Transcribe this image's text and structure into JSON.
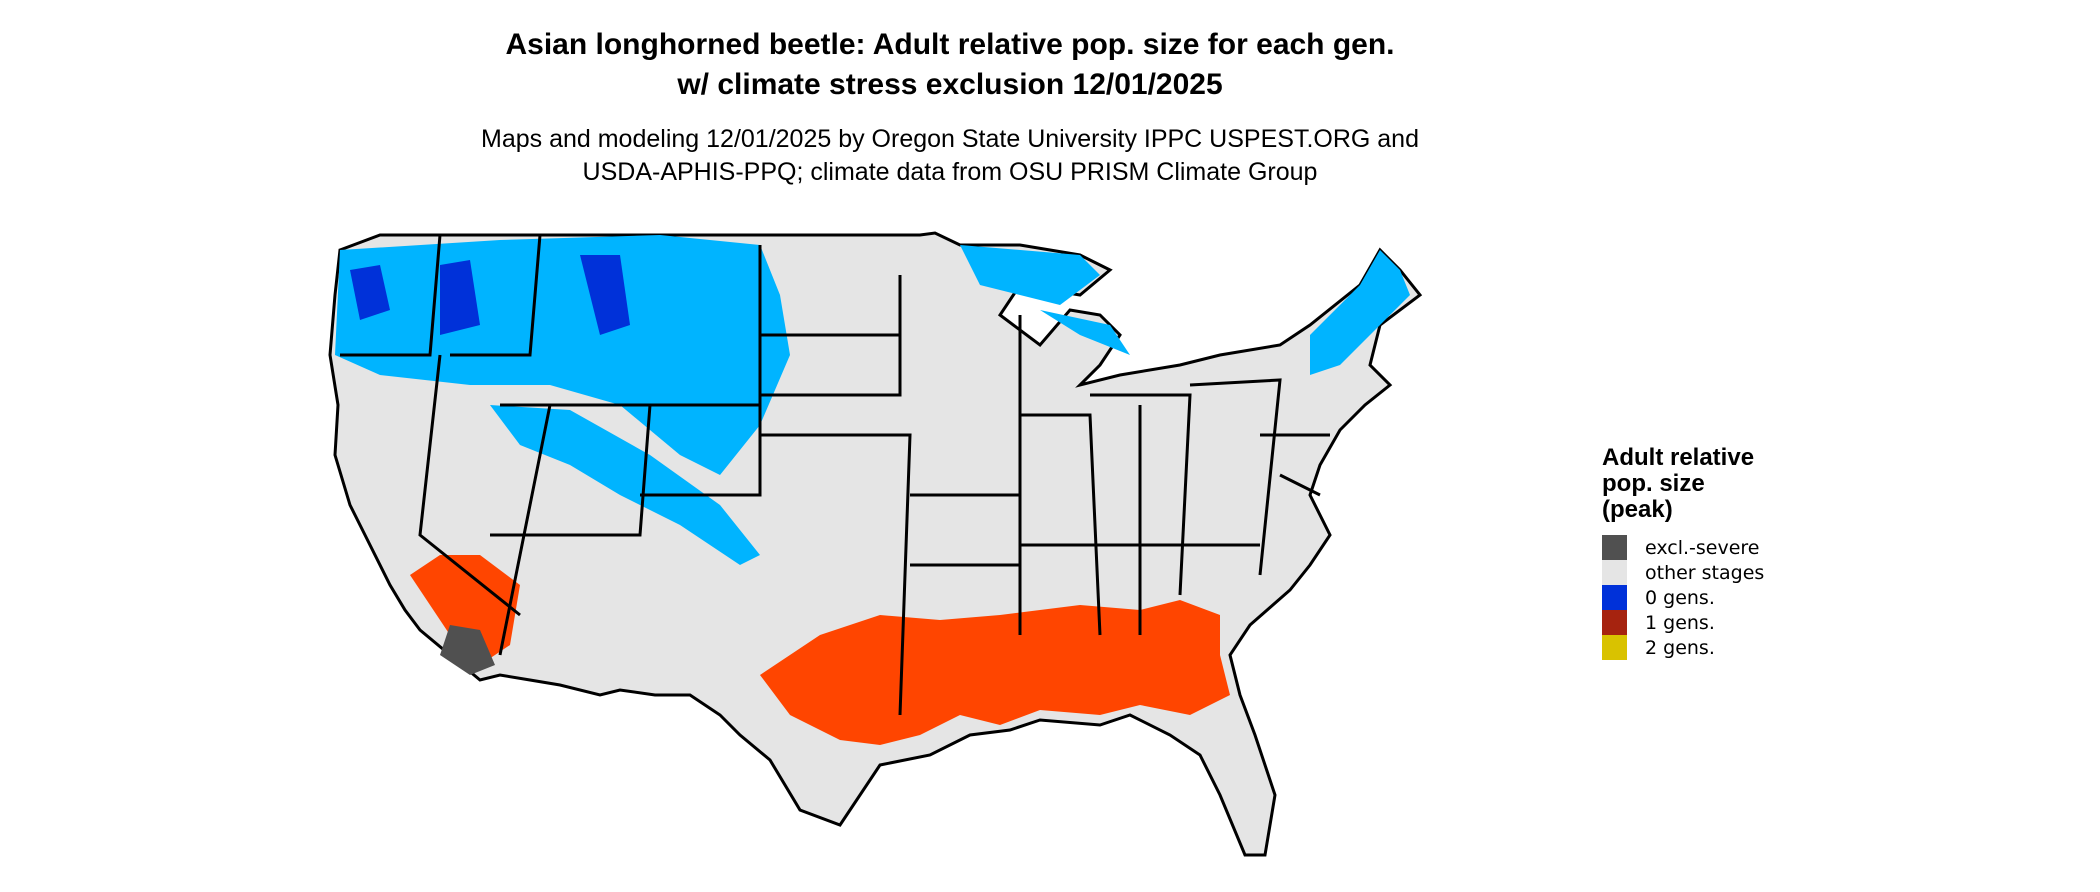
{
  "title": {
    "line1": "Asian longhorned beetle: Adult relative pop. size for each gen.",
    "line2": "w/ climate stress exclusion 12/01/2025"
  },
  "subtitle": {
    "line1": "Maps and modeling 12/01/2025 by Oregon State University IPPC USPEST.ORG and",
    "line2": "USDA-APHIS-PPQ; climate data from OSU PRISM Climate Group"
  },
  "legend": {
    "title_lines": [
      "Adult relative",
      "pop. size",
      "(peak)"
    ],
    "items": [
      {
        "label": "excl.-severe",
        "color": "#505050"
      },
      {
        "label": "other stages",
        "color": "#e5e5e5"
      },
      {
        "label": "0 gens.",
        "color": "#0031d9"
      },
      {
        "label": "1 gens.",
        "color": "#a6230f"
      },
      {
        "label": "2 gens.",
        "color": "#d9c200"
      }
    ]
  },
  "map_colors": {
    "light_blue": "#00b4ff",
    "orange": "#ff4500",
    "background_land": "#e5e5e5",
    "borders": "#000000"
  }
}
